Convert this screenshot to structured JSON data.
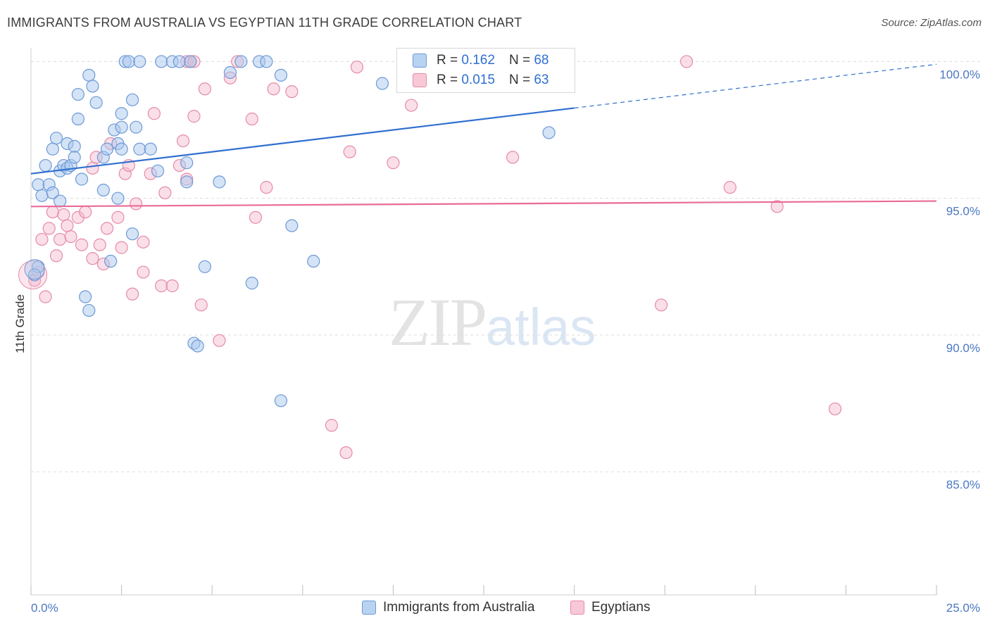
{
  "title": "IMMIGRANTS FROM AUSTRALIA VS EGYPTIAN 11TH GRADE CORRELATION CHART",
  "source": "Source: ZipAtlas.com",
  "watermark": {
    "zip": "ZIP",
    "atlas": "atlas"
  },
  "legend": {
    "row1": {
      "r_label": "R = ",
      "r_value": "0.162",
      "n_label": "N = ",
      "n_value": "68"
    },
    "row2": {
      "r_label": "R = ",
      "r_value": "0.015",
      "n_label": "N = ",
      "n_value": "63"
    }
  },
  "bottom_legend": {
    "series1": "Immigrants from Australia",
    "series2": "Egyptians"
  },
  "colors": {
    "blue_fill": "#a9c8ee",
    "blue_stroke": "#6d9ad6",
    "blue_line": "#2f6fcf",
    "pink_fill": "#f5b8cb",
    "pink_stroke": "#e68aa8",
    "pink_line": "#e96a98",
    "tick": "#4a78c2"
  },
  "chart_data": {
    "type": "scatter",
    "ylabel": "11th Grade",
    "xlim": [
      0,
      25
    ],
    "ylim": [
      80.5,
      100.5
    ],
    "x_tick_labels": [
      {
        "v": 0,
        "label": "0.0%"
      },
      {
        "v": 25,
        "label": "25.0%"
      }
    ],
    "y_tick_labels": [
      {
        "v": 100,
        "label": "100.0%"
      },
      {
        "v": 95,
        "label": "95.0%"
      },
      {
        "v": 90,
        "label": "90.0%"
      },
      {
        "v": 85,
        "label": "85.0%"
      }
    ],
    "series": [
      {
        "name": "Immigrants from Australia",
        "color": "#a9c8ee",
        "trend": {
          "x0": 0,
          "y0": 95.9,
          "x1": 15,
          "y1": 98.3,
          "dash_to": 25,
          "dash_y": 99.9
        },
        "points": [
          [
            0.2,
            92.5
          ],
          [
            0.1,
            92.2
          ],
          [
            0.2,
            95.5
          ],
          [
            0.3,
            95.1
          ],
          [
            0.4,
            96.2
          ],
          [
            0.5,
            95.5
          ],
          [
            0.6,
            95.2
          ],
          [
            0.6,
            96.8
          ],
          [
            0.7,
            97.2
          ],
          [
            0.8,
            96.0
          ],
          [
            0.8,
            94.9
          ],
          [
            0.9,
            96.2
          ],
          [
            1.0,
            97.0
          ],
          [
            1.0,
            96.1
          ],
          [
            1.1,
            96.2
          ],
          [
            1.2,
            96.9
          ],
          [
            1.2,
            96.5
          ],
          [
            1.3,
            98.8
          ],
          [
            1.3,
            97.9
          ],
          [
            1.4,
            95.7
          ],
          [
            1.5,
            91.4
          ],
          [
            1.6,
            90.9
          ],
          [
            1.6,
            99.5
          ],
          [
            1.7,
            99.1
          ],
          [
            1.8,
            98.5
          ],
          [
            2.0,
            95.3
          ],
          [
            2.0,
            96.5
          ],
          [
            2.1,
            96.8
          ],
          [
            2.2,
            92.7
          ],
          [
            2.3,
            97.5
          ],
          [
            2.4,
            95.0
          ],
          [
            2.4,
            97.0
          ],
          [
            2.5,
            98.1
          ],
          [
            2.5,
            97.6
          ],
          [
            2.5,
            96.8
          ],
          [
            2.6,
            100.0
          ],
          [
            2.7,
            100.0
          ],
          [
            2.8,
            98.6
          ],
          [
            2.8,
            93.7
          ],
          [
            2.9,
            97.6
          ],
          [
            3.0,
            96.8
          ],
          [
            3.0,
            100.0
          ],
          [
            3.3,
            96.8
          ],
          [
            3.5,
            96.0
          ],
          [
            3.6,
            100.0
          ],
          [
            3.9,
            100.0
          ],
          [
            4.1,
            100.0
          ],
          [
            4.3,
            96.3
          ],
          [
            4.3,
            95.6
          ],
          [
            4.4,
            100.0
          ],
          [
            4.5,
            89.7
          ],
          [
            4.6,
            89.6
          ],
          [
            4.8,
            92.5
          ],
          [
            5.2,
            95.6
          ],
          [
            5.5,
            99.6
          ],
          [
            5.8,
            100.0
          ],
          [
            6.1,
            91.9
          ],
          [
            6.3,
            100.0
          ],
          [
            6.5,
            100.0
          ],
          [
            6.9,
            87.6
          ],
          [
            6.9,
            99.5
          ],
          [
            7.2,
            94.0
          ],
          [
            7.8,
            92.7
          ],
          [
            9.7,
            99.2
          ],
          [
            12.3,
            100.0
          ],
          [
            12.5,
            100.0
          ],
          [
            13.6,
            99.7
          ],
          [
            14.3,
            97.4
          ]
        ]
      },
      {
        "name": "Egyptians",
        "color": "#f5b8cb",
        "trend": {
          "x0": 0,
          "y0": 94.7,
          "x1": 25,
          "y1": 94.9
        },
        "points": [
          [
            0.1,
            92.0
          ],
          [
            0.2,
            92.3
          ],
          [
            0.3,
            93.5
          ],
          [
            0.4,
            91.4
          ],
          [
            0.5,
            93.9
          ],
          [
            0.6,
            94.5
          ],
          [
            0.7,
            92.9
          ],
          [
            0.8,
            93.5
          ],
          [
            0.9,
            94.4
          ],
          [
            1.0,
            94.0
          ],
          [
            1.1,
            93.6
          ],
          [
            1.3,
            94.3
          ],
          [
            1.4,
            93.3
          ],
          [
            1.5,
            94.5
          ],
          [
            1.7,
            96.1
          ],
          [
            1.7,
            92.8
          ],
          [
            1.8,
            96.5
          ],
          [
            1.9,
            93.3
          ],
          [
            2.0,
            92.6
          ],
          [
            2.1,
            93.9
          ],
          [
            2.2,
            97.0
          ],
          [
            2.4,
            94.3
          ],
          [
            2.5,
            93.2
          ],
          [
            2.6,
            95.9
          ],
          [
            2.7,
            96.2
          ],
          [
            2.8,
            91.5
          ],
          [
            2.9,
            94.8
          ],
          [
            3.1,
            92.3
          ],
          [
            3.1,
            93.4
          ],
          [
            3.3,
            95.9
          ],
          [
            3.4,
            98.1
          ],
          [
            3.6,
            91.8
          ],
          [
            3.7,
            95.2
          ],
          [
            3.9,
            91.8
          ],
          [
            4.1,
            96.2
          ],
          [
            4.2,
            97.1
          ],
          [
            4.3,
            95.7
          ],
          [
            4.3,
            100.0
          ],
          [
            4.4,
            100.0
          ],
          [
            4.5,
            100.0
          ],
          [
            4.5,
            98.0
          ],
          [
            4.7,
            91.1
          ],
          [
            4.8,
            99.0
          ],
          [
            5.2,
            89.8
          ],
          [
            5.5,
            99.4
          ],
          [
            5.7,
            100.0
          ],
          [
            6.1,
            97.9
          ],
          [
            6.2,
            94.3
          ],
          [
            6.5,
            95.4
          ],
          [
            6.7,
            99.0
          ],
          [
            7.2,
            98.9
          ],
          [
            8.3,
            86.7
          ],
          [
            8.7,
            85.7
          ],
          [
            8.8,
            96.7
          ],
          [
            9.0,
            99.8
          ],
          [
            10.0,
            96.3
          ],
          [
            10.5,
            98.4
          ],
          [
            13.3,
            96.5
          ],
          [
            17.4,
            91.1
          ],
          [
            18.1,
            100.0
          ],
          [
            19.3,
            95.4
          ],
          [
            20.6,
            94.7
          ],
          [
            22.2,
            87.3
          ]
        ]
      }
    ]
  }
}
